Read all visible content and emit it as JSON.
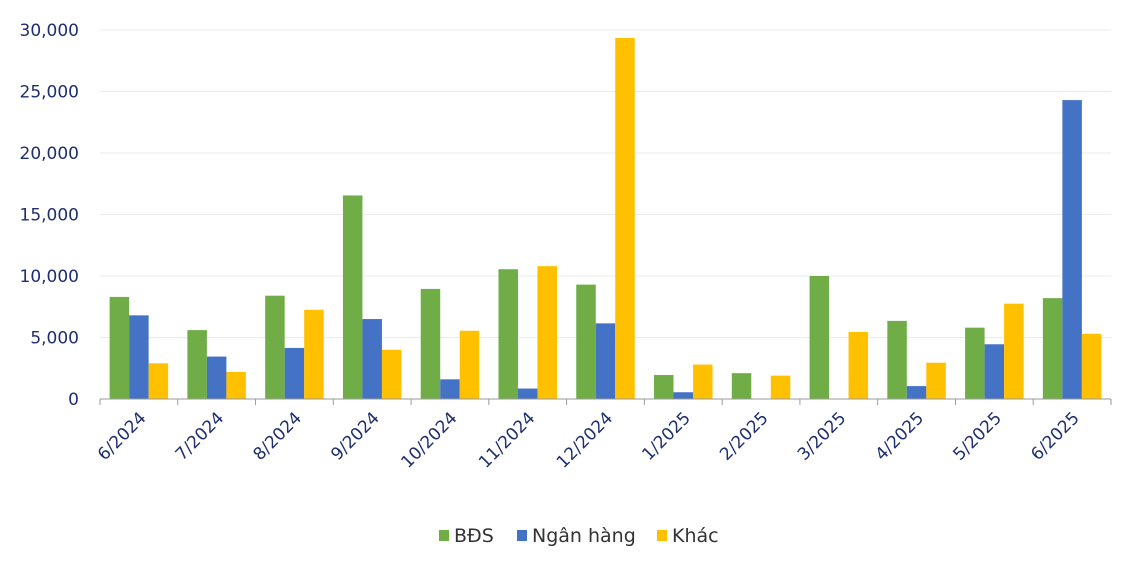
{
  "chart_data": {
    "type": "bar",
    "categories": [
      "6/2024",
      "7/2024",
      "8/2024",
      "9/2024",
      "10/2024",
      "11/2024",
      "12/2024",
      "1/2025",
      "2/2025",
      "3/2025",
      "4/2025",
      "5/2025",
      "6/2025"
    ],
    "series": [
      {
        "name": "BĐS",
        "color": "#70ad47",
        "values": [
          8300,
          5600,
          8400,
          16550,
          8950,
          10550,
          9300,
          1950,
          2100,
          10000,
          6350,
          5800,
          8200
        ]
      },
      {
        "name": "Ngân hàng",
        "color": "#4472c4",
        "values": [
          6800,
          3450,
          4150,
          6500,
          1600,
          850,
          6150,
          550,
          0,
          0,
          1050,
          4450,
          24300
        ]
      },
      {
        "name": "Khác",
        "color": "#ffc000",
        "values": [
          2900,
          2200,
          7250,
          4000,
          5550,
          10800,
          29350,
          2800,
          1900,
          5450,
          2950,
          7750,
          5300
        ]
      }
    ],
    "ylim": [
      0,
      30000
    ],
    "yticks": [
      0,
      5000,
      10000,
      15000,
      20000,
      25000,
      30000
    ],
    "ytick_labels": [
      "0",
      "5,000",
      "10,000",
      "15,000",
      "20,000",
      "25,000",
      "30,000"
    ],
    "grid": true,
    "legend": "bottom-center",
    "title": "",
    "xlabel": "",
    "ylabel": ""
  }
}
